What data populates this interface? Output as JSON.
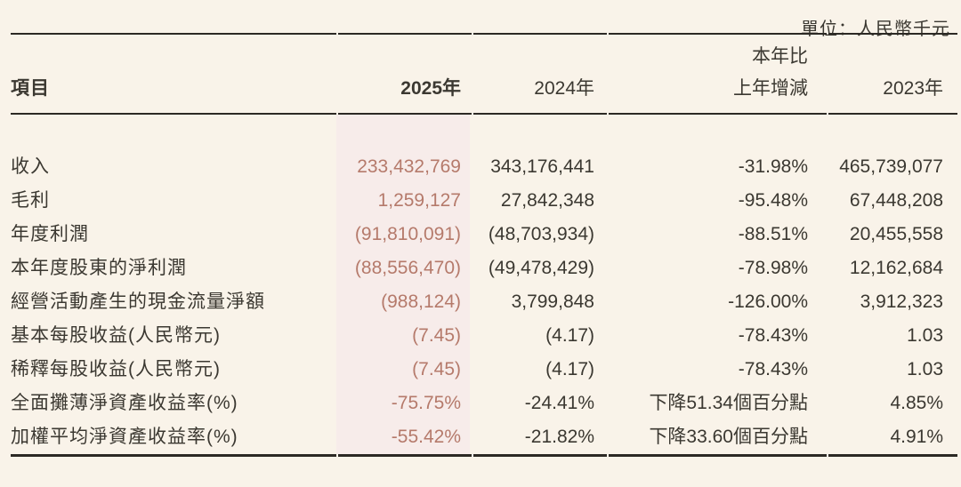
{
  "unit_note": "單位：人民幣千元",
  "colors": {
    "page_bg": "#f9f3e9",
    "text": "#3b3831",
    "highlight_bg": "#f7ecea",
    "highlight_text": "#b57a6b",
    "rule": "#2c2924"
  },
  "table": {
    "header": {
      "item": "項目",
      "y2025": "2025年",
      "y2024": "2024年",
      "change_line1": "本年比",
      "change_line2": "上年增減",
      "y2023": "2023年"
    },
    "rows": [
      {
        "label": "收入",
        "y2025": "233,432,769",
        "y2024": "343,176,441",
        "change": "-31.98%",
        "y2023": "465,739,077"
      },
      {
        "label": "毛利",
        "y2025": "1,259,127",
        "y2024": "27,842,348",
        "change": "-95.48%",
        "y2023": "67,448,208"
      },
      {
        "label": "年度利潤",
        "y2025": "(91,810,091)",
        "y2024": "(48,703,934)",
        "change": "-88.51%",
        "y2023": "20,455,558"
      },
      {
        "label": "本年度股東的淨利潤",
        "y2025": "(88,556,470)",
        "y2024": "(49,478,429)",
        "change": "-78.98%",
        "y2023": "12,162,684"
      },
      {
        "label": "經營活動產生的現金流量淨額",
        "y2025": "(988,124)",
        "y2024": "3,799,848",
        "change": "-126.00%",
        "y2023": "3,912,323"
      },
      {
        "label": "基本每股收益(人民幣元)",
        "y2025": "(7.45)",
        "y2024": "(4.17)",
        "change": "-78.43%",
        "y2023": "1.03"
      },
      {
        "label": "稀釋每股收益(人民幣元)",
        "y2025": "(7.45)",
        "y2024": "(4.17)",
        "change": "-78.43%",
        "y2023": "1.03"
      },
      {
        "label": "全面攤薄淨資產收益率(%)",
        "y2025": "-75.75%",
        "y2024": "-24.41%",
        "change": "下降51.34個百分點",
        "y2023": "4.85%"
      },
      {
        "label": "加權平均淨資產收益率(%)",
        "y2025": "-55.42%",
        "y2024": "-21.82%",
        "change": "下降33.60個百分點",
        "y2023": "4.91%"
      }
    ]
  }
}
